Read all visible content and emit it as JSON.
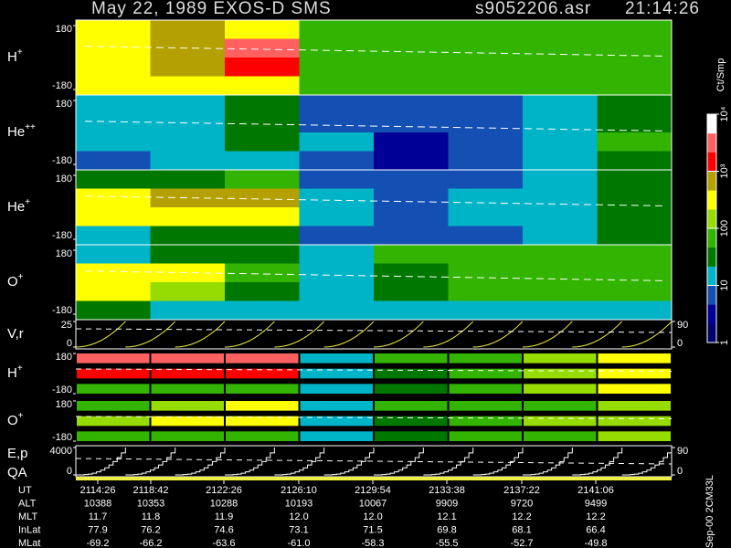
{
  "header": {
    "title": "May 22, 1989   EXOS-D SMS",
    "file": "s9052206.asr",
    "time": "21:14:26"
  },
  "chart_data": {
    "type": "heatmap",
    "log_color": true,
    "colorbar": {
      "unit": "Ct/Smp",
      "lim": [
        1,
        10000
      ],
      "ticks": [
        1,
        10,
        100,
        {
          "value": 1000,
          "label": "10³"
        },
        {
          "value": 10000,
          "label": "10⁴"
        }
      ],
      "colors": [
        "#00006e",
        "#000096",
        "#1450b4",
        "#00b4c8",
        "#007800",
        "#32b400",
        "#96dc00",
        "#ffff00",
        "#b4a000",
        "#ff0000",
        "#ff6060",
        "#ffffff"
      ]
    },
    "panels": [
      {
        "label": {
          "base": "H",
          "sup": "+"
        },
        "ylim": [
          -180,
          180
        ],
        "yticks": [
          180,
          -180
        ],
        "values": [
          [
            300,
            500,
            250,
            90,
            70,
            70,
            70,
            70
          ],
          [
            350,
            600,
            2200,
            70,
            70,
            70,
            70,
            60
          ],
          [
            250,
            500,
            1800,
            70,
            80,
            70,
            70,
            60
          ],
          [
            300,
            400,
            300,
            90,
            70,
            70,
            70,
            60
          ]
        ]
      },
      {
        "label": {
          "base": "He",
          "sup": "++"
        },
        "ylim": [
          -180,
          180
        ],
        "yticks": [
          180,
          -180
        ],
        "values": [
          [
            12,
            15,
            25,
            8,
            5,
            6,
            12,
            40
          ],
          [
            10,
            12,
            35,
            8,
            5,
            6,
            15,
            45
          ],
          [
            15,
            20,
            45,
            10,
            4,
            6,
            18,
            50
          ],
          [
            8,
            10,
            15,
            6,
            4,
            6,
            15,
            40
          ]
        ]
      },
      {
        "label": {
          "base": "He",
          "sup": "+"
        },
        "ylim": [
          -180,
          180
        ],
        "yticks": [
          180,
          -180
        ],
        "values": [
          [
            30,
            40,
            60,
            8,
            6,
            8,
            15,
            40
          ],
          [
            300,
            600,
            500,
            10,
            6,
            10,
            20,
            45
          ],
          [
            250,
            400,
            300,
            10,
            6,
            10,
            20,
            45
          ],
          [
            20,
            30,
            30,
            6,
            5,
            8,
            15,
            35
          ]
        ]
      },
      {
        "label": {
          "base": "O",
          "sup": "+"
        },
        "ylim": [
          -180,
          180
        ],
        "yticks": [
          180,
          -180
        ],
        "values": [
          [
            20,
            30,
            40,
            15,
            60,
            60,
            60,
            60
          ],
          [
            300,
            250,
            60,
            15,
            30,
            70,
            60,
            60
          ],
          [
            250,
            150,
            40,
            12,
            25,
            60,
            50,
            60
          ],
          [
            30,
            20,
            15,
            12,
            15,
            20,
            20,
            20
          ]
        ]
      }
    ],
    "velocity": {
      "label": "V,r",
      "ylim": [
        0,
        25
      ],
      "yticks": [
        25,
        0
      ],
      "y2lim": [
        0,
        90
      ],
      "y2ticks": [
        90,
        0
      ]
    },
    "small_panels": [
      {
        "label": {
          "base": "H",
          "sup": "+"
        },
        "ylim": [
          -180,
          180
        ],
        "yticks": [
          180,
          -180
        ],
        "values": [
          [
            2500,
            2500,
            2500,
            15,
            80,
            90,
            150,
            300
          ],
          [
            2000,
            2000,
            2000,
            15,
            30,
            80,
            120,
            250
          ],
          [
            60,
            60,
            60,
            15,
            25,
            60,
            120,
            300
          ]
        ]
      },
      {
        "label": {
          "base": "O",
          "sup": "+"
        },
        "ylim": [
          -180,
          180
        ],
        "yticks": [
          180,
          -180
        ],
        "values": [
          [
            60,
            200,
            300,
            15,
            60,
            60,
            80,
            120
          ],
          [
            150,
            300,
            300,
            15,
            40,
            60,
            100,
            200
          ],
          [
            60,
            80,
            80,
            12,
            40,
            60,
            90,
            150
          ]
        ]
      }
    ],
    "energy": {
      "label": "E,p",
      "qa_label": "QA",
      "ylim": [
        0,
        4000
      ],
      "yticks": [
        4000,
        0
      ],
      "y2lim": [
        0,
        90
      ],
      "y2ticks": [
        90,
        0
      ]
    }
  },
  "orbit": {
    "rows": [
      {
        "name": "UT",
        "values": [
          "2114:26",
          "2118:42",
          "2122:26",
          "2126:10",
          "2129:54",
          "2133:38",
          "2137:22",
          "2141:06"
        ]
      },
      {
        "name": "ALT",
        "values": [
          "10388",
          "10353",
          "10288",
          "10193",
          "10067",
          "9909",
          "9720",
          "9499"
        ]
      },
      {
        "name": "MLT",
        "values": [
          "11.7",
          "11.8",
          "11.9",
          "12.0",
          "12.0",
          "12.1",
          "12.2",
          "12.2"
        ]
      },
      {
        "name": "InLat",
        "values": [
          "77.9",
          "76.2",
          "74.6",
          "73.1",
          "71.5",
          "69.8",
          "68.1",
          "66.4"
        ]
      },
      {
        "name": "MLat",
        "values": [
          "-69.2",
          "-66.2",
          "-63.6",
          "-61.0",
          "-58.3",
          "-55.5",
          "-52.7",
          "-49.8"
        ]
      }
    ]
  },
  "footer": "Sep-00 2CM33L"
}
